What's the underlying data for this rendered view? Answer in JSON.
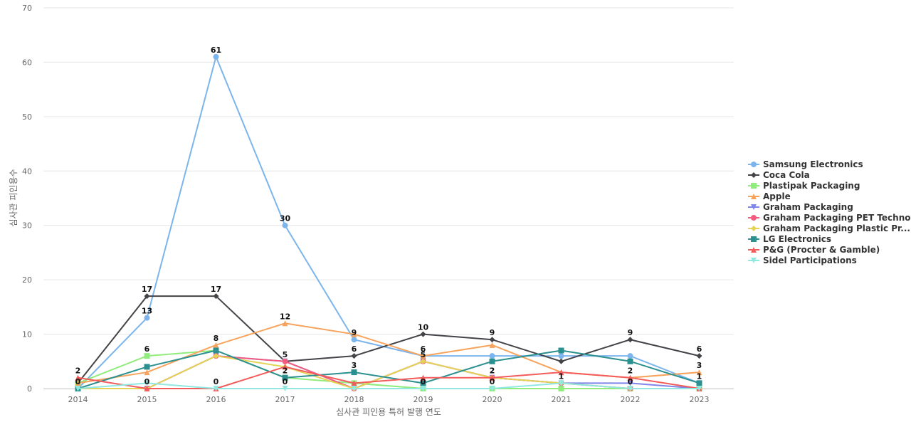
{
  "chart_data": {
    "type": "line",
    "xlabel": "심사관 피인용 특허 발행 연도",
    "ylabel": "심사관 피인용수",
    "ylim": [
      0,
      70
    ],
    "yticks": [
      0,
      10,
      20,
      30,
      40,
      50,
      60,
      70
    ],
    "categories": [
      "2014",
      "2015",
      "2016",
      "2017",
      "2018",
      "2019",
      "2020",
      "2021",
      "2022",
      "2023"
    ],
    "grid": true,
    "legend_position": "right",
    "series": [
      {
        "name": "Samsung Electronics",
        "color": "#7cb5ec",
        "marker": "circle",
        "values": [
          0,
          13,
          61,
          30,
          9,
          6,
          6,
          6,
          6,
          1
        ],
        "labels": [
          0,
          1,
          1,
          1,
          1,
          0,
          0,
          0,
          0,
          0
        ]
      },
      {
        "name": "Coca Cola",
        "color": "#434348",
        "marker": "diamond",
        "values": [
          1,
          17,
          17,
          5,
          6,
          10,
          9,
          5,
          9,
          6
        ],
        "labels": [
          0,
          1,
          1,
          0,
          1,
          1,
          1,
          0,
          1,
          1
        ]
      },
      {
        "name": "Plastipak Packaging",
        "color": "#90ed7d",
        "marker": "square",
        "values": [
          1,
          6,
          7,
          2,
          1,
          0,
          0,
          0,
          0,
          0
        ],
        "labels": [
          0,
          1,
          0,
          1,
          0,
          0,
          0,
          0,
          0,
          0
        ]
      },
      {
        "name": "Apple",
        "color": "#f7a35c",
        "marker": "triangle",
        "values": [
          1,
          3,
          8,
          12,
          10,
          6,
          8,
          3,
          2,
          3
        ],
        "labels": [
          0,
          0,
          1,
          1,
          0,
          1,
          0,
          0,
          1,
          1
        ]
      },
      {
        "name": "Graham Packaging",
        "color": "#8085e9",
        "marker": "triangle-down",
        "values": [
          0,
          0,
          6,
          5,
          0,
          5,
          2,
          1,
          1,
          0
        ],
        "labels": [
          0,
          0,
          0,
          1,
          0,
          0,
          1,
          0,
          0,
          0
        ]
      },
      {
        "name": "Graham Packaging PET Techno...",
        "color": "#f15c80",
        "marker": "circle",
        "values": [
          0,
          0,
          6,
          5,
          0,
          5,
          2,
          1,
          0,
          0
        ],
        "labels": [
          0,
          1,
          0,
          0,
          0,
          0,
          0,
          0,
          1,
          0
        ]
      },
      {
        "name": "Graham Packaging Plastic Pr...",
        "color": "#e4d354",
        "marker": "diamond",
        "values": [
          0,
          0,
          6,
          4,
          0,
          5,
          2,
          1,
          0,
          0
        ],
        "labels": [
          1,
          0,
          0,
          0,
          0,
          1,
          1,
          0,
          0,
          0
        ]
      },
      {
        "name": "LG Electronics",
        "color": "#2b908f",
        "marker": "square",
        "values": [
          0,
          4,
          7,
          2,
          3,
          1,
          5,
          7,
          5,
          1
        ],
        "labels": [
          0,
          0,
          0,
          0,
          1,
          0,
          0,
          0,
          0,
          1
        ]
      },
      {
        "name": "P&G (Procter & Gamble)",
        "color": "#f45b5b",
        "marker": "triangle",
        "values": [
          2,
          0,
          0,
          4,
          1,
          2,
          2,
          3,
          2,
          0
        ],
        "labels": [
          1,
          0,
          1,
          0,
          0,
          0,
          0,
          0,
          0,
          0
        ]
      },
      {
        "name": "Sidel Participations",
        "color": "#91e8e1",
        "marker": "triangle-down",
        "values": [
          0,
          1,
          0,
          0,
          0,
          0,
          0,
          1,
          0,
          0
        ],
        "labels": [
          0,
          0,
          0,
          1,
          0,
          1,
          1,
          1,
          0,
          0
        ]
      }
    ]
  }
}
